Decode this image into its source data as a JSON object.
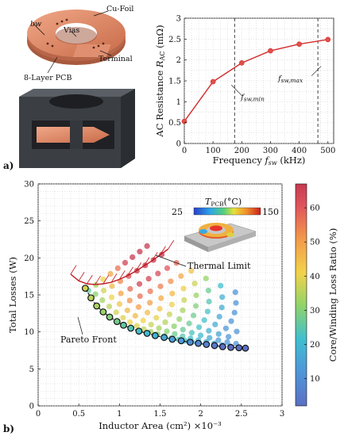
{
  "panel_a": {
    "label": "a)",
    "illustration": {
      "labels": {
        "cu_foil": "Cu-Foil",
        "vias": "Vias",
        "bw": "bw",
        "terminal": "Terminal",
        "pcb": "8-Layer PCB"
      }
    },
    "chart_data": {
      "type": "line",
      "x": [
        0,
        100,
        200,
        300,
        400,
        500
      ],
      "y": [
        0.53,
        1.48,
        1.93,
        2.22,
        2.38,
        2.49
      ],
      "xlabel": "Frequency f_sw (kHz)",
      "ylabel": "AC Resistance R_AC (mΩ)",
      "xlim": [
        0,
        520
      ],
      "ylim": [
        0,
        3
      ],
      "xticks": [
        "0",
        "100",
        "200",
        "300",
        "400",
        "500"
      ],
      "yticks": [
        "0",
        "0.5",
        "1",
        "1.5",
        "2",
        "2.5",
        "3"
      ],
      "grid": true,
      "vlines": [
        {
          "x": 175,
          "label": "f_sw,min"
        },
        {
          "x": 465,
          "label": "f_sw,max"
        }
      ],
      "color": "#d42a2a"
    }
  },
  "panel_b": {
    "label": "b)",
    "chart_data": {
      "type": "scatter",
      "xlabel": "Inductor Area (cm²) ×10⁻³",
      "ylabel": "Total Losses (W)",
      "xlim": [
        0,
        3
      ],
      "ylim": [
        0,
        30
      ],
      "xticks": [
        "0",
        "0.5",
        "1",
        "1.5",
        "2",
        "2.5",
        "3"
      ],
      "yticks": [
        "0",
        "5",
        "10",
        "15",
        "20",
        "25",
        "30"
      ],
      "grid": true,
      "pareto_front": {
        "label": "Pareto Front",
        "x": [
          0.58,
          0.65,
          0.72,
          0.8,
          0.88,
          0.97,
          1.05,
          1.14,
          1.24,
          1.34,
          1.44,
          1.55,
          1.65,
          1.76,
          1.87,
          1.97,
          2.07,
          2.17,
          2.27,
          2.37,
          2.47,
          2.55
        ],
        "y": [
          15.9,
          14.6,
          13.5,
          12.7,
          12.0,
          11.4,
          10.9,
          10.5,
          10.1,
          9.8,
          9.5,
          9.25,
          9.0,
          8.8,
          8.6,
          8.45,
          8.3,
          8.15,
          8.0,
          7.9,
          7.85,
          7.8
        ]
      },
      "thermal_limit": {
        "label": "Thermal Limit",
        "x": [
          0.4,
          0.5,
          0.6,
          0.7,
          0.8,
          0.9,
          1.0,
          1.1,
          1.2,
          1.3,
          1.4,
          1.5,
          1.6
        ],
        "y": [
          17.8,
          16.9,
          16.5,
          16.4,
          16.5,
          16.7,
          17.1,
          17.6,
          18.2,
          18.9,
          19.6,
          20.4,
          21.2
        ],
        "color": "#c0181f"
      },
      "inset": {
        "title": "T_PCB(°C)",
        "min_label": "25",
        "max_label": "150"
      },
      "colorbar": {
        "label": "Core/Winding Loss Ratio (%)",
        "ticks": [
          "10",
          "20",
          "30",
          "40",
          "50",
          "60"
        ],
        "range": [
          2,
          67
        ]
      }
    }
  }
}
